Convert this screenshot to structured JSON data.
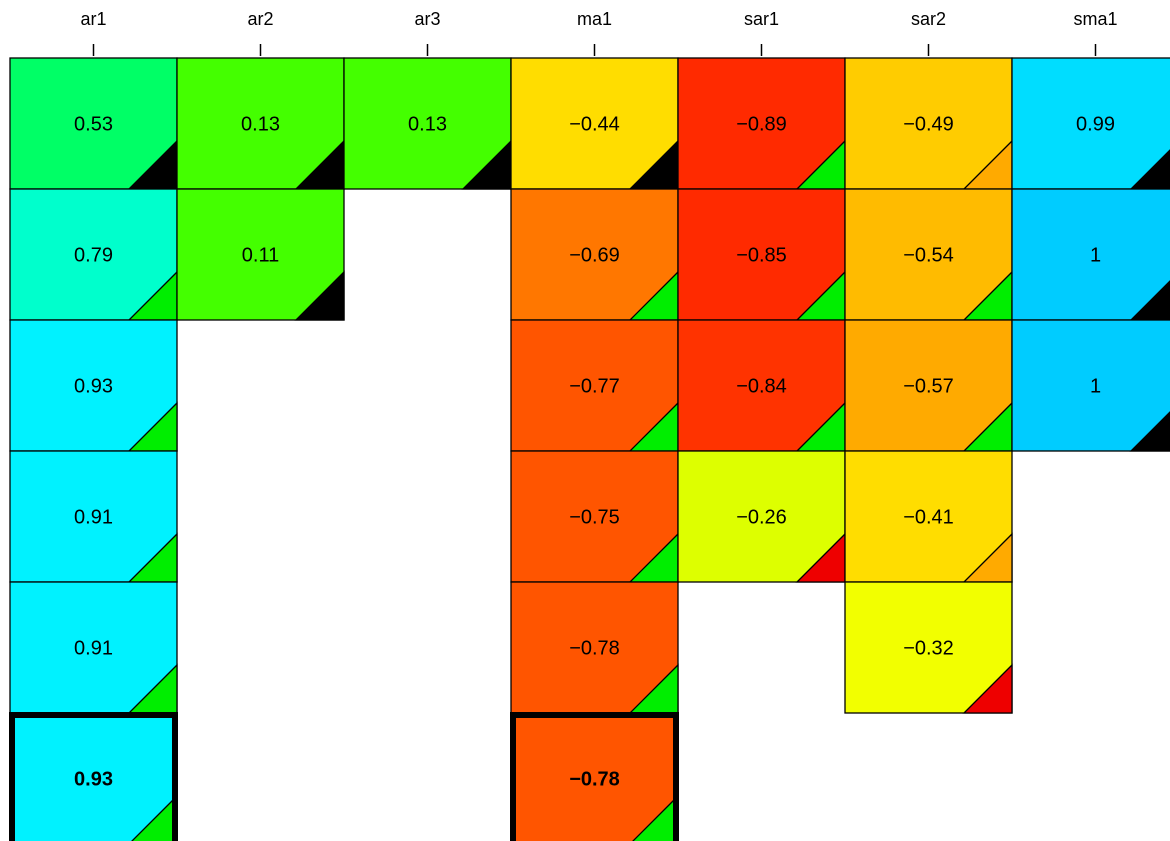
{
  "chart_data": {
    "type": "heatmap",
    "columns": [
      "ar1",
      "ar2",
      "ar3",
      "ma1",
      "sar1",
      "sar2",
      "sma1"
    ],
    "rows": 6,
    "cells": [
      {
        "row": 0,
        "col": 0,
        "label": "0.53",
        "value": 0.53,
        "fill": "#00ff66",
        "corner": "#000000"
      },
      {
        "row": 0,
        "col": 1,
        "label": "0.13",
        "value": 0.13,
        "fill": "#44ff00",
        "corner": "#000000"
      },
      {
        "row": 0,
        "col": 2,
        "label": "0.13",
        "value": 0.13,
        "fill": "#44ff00",
        "corner": "#000000"
      },
      {
        "row": 0,
        "col": 3,
        "label": "−0.44",
        "value": -0.44,
        "fill": "#ffdd00",
        "corner": "#000000"
      },
      {
        "row": 0,
        "col": 4,
        "label": "−0.89",
        "value": -0.89,
        "fill": "#ff2a00",
        "corner": "#00ee00"
      },
      {
        "row": 0,
        "col": 5,
        "label": "−0.49",
        "value": -0.49,
        "fill": "#ffcc00",
        "corner": "#ffaa00"
      },
      {
        "row": 0,
        "col": 6,
        "label": "0.99",
        "value": 0.99,
        "fill": "#00ddff",
        "corner": "#000000"
      },
      {
        "row": 1,
        "col": 0,
        "label": "0.79",
        "value": 0.79,
        "fill": "#00ffcc",
        "corner": "#00ee00"
      },
      {
        "row": 1,
        "col": 1,
        "label": "0.11",
        "value": 0.11,
        "fill": "#44ff00",
        "corner": "#000000"
      },
      {
        "row": 1,
        "col": 3,
        "label": "−0.69",
        "value": -0.69,
        "fill": "#ff7700",
        "corner": "#00ee00"
      },
      {
        "row": 1,
        "col": 4,
        "label": "−0.85",
        "value": -0.85,
        "fill": "#ff2a00",
        "corner": "#00ee00"
      },
      {
        "row": 1,
        "col": 5,
        "label": "−0.54",
        "value": -0.54,
        "fill": "#ffbb00",
        "corner": "#00ee00"
      },
      {
        "row": 1,
        "col": 6,
        "label": "1",
        "value": 1,
        "fill": "#00ccff",
        "corner": "#000000"
      },
      {
        "row": 2,
        "col": 0,
        "label": "0.93",
        "value": 0.93,
        "fill": "#00f2ff",
        "corner": "#00ee00"
      },
      {
        "row": 2,
        "col": 3,
        "label": "−0.77",
        "value": -0.77,
        "fill": "#ff5500",
        "corner": "#00ee00"
      },
      {
        "row": 2,
        "col": 4,
        "label": "−0.84",
        "value": -0.84,
        "fill": "#ff3300",
        "corner": "#00ee00"
      },
      {
        "row": 2,
        "col": 5,
        "label": "−0.57",
        "value": -0.57,
        "fill": "#ffaa00",
        "corner": "#00ee00"
      },
      {
        "row": 2,
        "col": 6,
        "label": "1",
        "value": 1,
        "fill": "#00ccff",
        "corner": "#000000"
      },
      {
        "row": 3,
        "col": 0,
        "label": "0.91",
        "value": 0.91,
        "fill": "#00f2ff",
        "corner": "#00ee00"
      },
      {
        "row": 3,
        "col": 3,
        "label": "−0.75",
        "value": -0.75,
        "fill": "#ff5500",
        "corner": "#00ee00"
      },
      {
        "row": 3,
        "col": 4,
        "label": "−0.26",
        "value": -0.26,
        "fill": "#ddff00",
        "corner": "#ee0000"
      },
      {
        "row": 3,
        "col": 5,
        "label": "−0.41",
        "value": -0.41,
        "fill": "#ffdd00",
        "corner": "#ffaa00"
      },
      {
        "row": 4,
        "col": 0,
        "label": "0.91",
        "value": 0.91,
        "fill": "#00f2ff",
        "corner": "#00ee00"
      },
      {
        "row": 4,
        "col": 3,
        "label": "−0.78",
        "value": -0.78,
        "fill": "#ff5500",
        "corner": "#00ee00"
      },
      {
        "row": 4,
        "col": 5,
        "label": "−0.32",
        "value": -0.32,
        "fill": "#f2ff00",
        "corner": "#ee0000"
      },
      {
        "row": 5,
        "col": 0,
        "label": "0.93",
        "value": 0.93,
        "fill": "#00f2ff",
        "corner": "#00ee00",
        "highlight": true
      },
      {
        "row": 5,
        "col": 3,
        "label": "−0.78",
        "value": -0.78,
        "fill": "#ff5500",
        "corner": "#00ee00",
        "highlight": true
      }
    ]
  }
}
